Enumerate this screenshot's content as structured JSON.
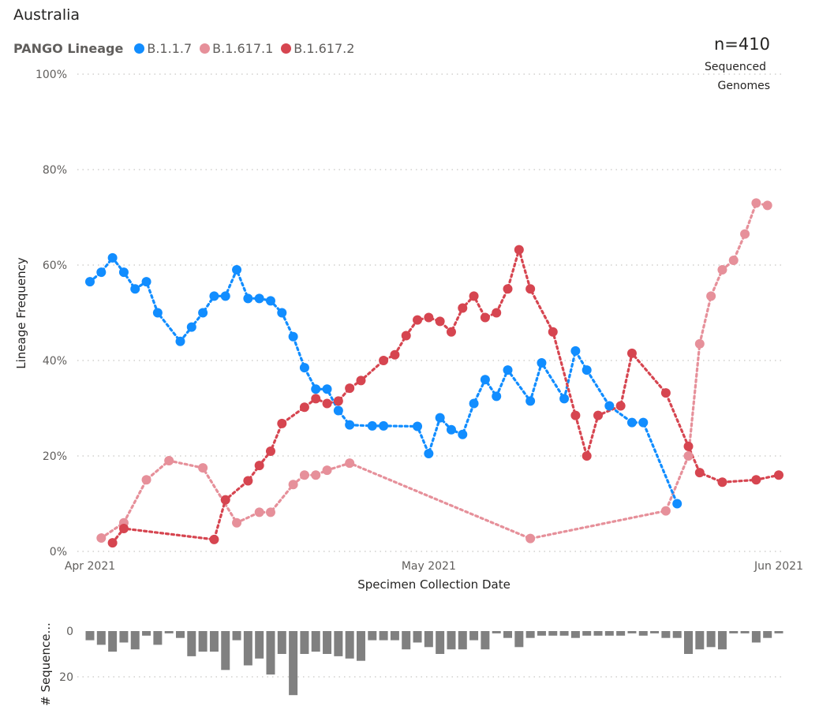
{
  "page": {
    "title": "Australia",
    "legend_title": "PANGO Lineage",
    "n_count": "n=410",
    "n_label_1": "Sequenced",
    "n_label_2": "Genomes"
  },
  "colors": {
    "B.1.1.7": "#118dff",
    "B.1.617.1": "#e6909a",
    "B.1.617.2": "#d64550",
    "bars": "#808080",
    "grid": "#c8c6c4"
  },
  "chart_data": [
    {
      "type": "line",
      "title": "",
      "xlabel": "Specimen Collection Date",
      "ylabel": "Lineage Frequency",
      "xlim": [
        "2021-04-01",
        "2021-06-01"
      ],
      "ylim": [
        0,
        100
      ],
      "yticks": [
        "0%",
        "20%",
        "40%",
        "60%",
        "80%",
        "100%"
      ],
      "ytick_values": [
        0,
        20,
        40,
        60,
        80,
        100
      ],
      "xticks": [
        "Apr 2021",
        "May 2021",
        "Jun 2021"
      ],
      "xtick_values": [
        "2021-04-01",
        "2021-05-01",
        "2021-06-01"
      ],
      "grid": true,
      "legend": "top-left",
      "series": [
        {
          "name": "B.1.1.7",
          "x": [
            "2021-04-01",
            "2021-04-02",
            "2021-04-03",
            "2021-04-04",
            "2021-04-05",
            "2021-04-06",
            "2021-04-07",
            "2021-04-09",
            "2021-04-10",
            "2021-04-11",
            "2021-04-12",
            "2021-04-13",
            "2021-04-14",
            "2021-04-15",
            "2021-04-16",
            "2021-04-17",
            "2021-04-18",
            "2021-04-19",
            "2021-04-20",
            "2021-04-21",
            "2021-04-22",
            "2021-04-23",
            "2021-04-24",
            "2021-04-26",
            "2021-04-27",
            "2021-04-30",
            "2021-05-01",
            "2021-05-02",
            "2021-05-03",
            "2021-05-04",
            "2021-05-05",
            "2021-05-06",
            "2021-05-07",
            "2021-05-08",
            "2021-05-10",
            "2021-05-11",
            "2021-05-13",
            "2021-05-14",
            "2021-05-15",
            "2021-05-17",
            "2021-05-19",
            "2021-05-20",
            "2021-05-23"
          ],
          "values": [
            56.5,
            58.5,
            61.5,
            58.5,
            55,
            56.5,
            50,
            44,
            47,
            50,
            53.5,
            53.5,
            59,
            53,
            53,
            52.5,
            50,
            45,
            38.5,
            34,
            34,
            29.5,
            26.5,
            26.3,
            26.3,
            26.2,
            20.5,
            28,
            25.5,
            24.5,
            31,
            36,
            32.5,
            38,
            31.5,
            39.5,
            32,
            42,
            38,
            30.5,
            27,
            27,
            10
          ]
        },
        {
          "name": "B.1.617.1",
          "x": [
            "2021-04-02",
            "2021-04-04",
            "2021-04-06",
            "2021-04-08",
            "2021-04-11",
            "2021-04-14",
            "2021-04-16",
            "2021-04-17",
            "2021-04-19",
            "2021-04-20",
            "2021-04-21",
            "2021-04-22",
            "2021-04-24",
            "2021-05-10",
            "2021-05-22",
            "2021-05-24",
            "2021-05-25",
            "2021-05-26",
            "2021-05-27",
            "2021-05-28",
            "2021-05-29",
            "2021-05-30",
            "2021-05-31"
          ],
          "values": [
            2.8,
            6,
            15,
            19,
            17.5,
            6,
            8.2,
            8.2,
            14,
            16,
            16,
            17,
            18.5,
            2.7,
            8.5,
            20,
            43.5,
            53.5,
            59,
            61,
            66.5,
            73,
            72.5
          ]
        },
        {
          "name": "B.1.617.2",
          "x": [
            "2021-04-03",
            "2021-04-04",
            "2021-04-12",
            "2021-04-13",
            "2021-04-15",
            "2021-04-16",
            "2021-04-17",
            "2021-04-18",
            "2021-04-20",
            "2021-04-21",
            "2021-04-22",
            "2021-04-23",
            "2021-04-24",
            "2021-04-25",
            "2021-04-27",
            "2021-04-28",
            "2021-04-29",
            "2021-04-30",
            "2021-05-01",
            "2021-05-02",
            "2021-05-03",
            "2021-05-04",
            "2021-05-05",
            "2021-05-06",
            "2021-05-07",
            "2021-05-08",
            "2021-05-09",
            "2021-05-10",
            "2021-05-12",
            "2021-05-14",
            "2021-05-15",
            "2021-05-16",
            "2021-05-18",
            "2021-05-19",
            "2021-05-22",
            "2021-05-24",
            "2021-05-25",
            "2021-05-27",
            "2021-05-30",
            "2021-06-01"
          ],
          "values": [
            1.8,
            4.8,
            2.5,
            10.8,
            14.8,
            18,
            21,
            26.8,
            30.2,
            32,
            31,
            31.5,
            34.2,
            35.8,
            40,
            41.2,
            45.2,
            48.5,
            49,
            48.2,
            46,
            51,
            53.5,
            49,
            50,
            55,
            63.2,
            55,
            46,
            28.5,
            20,
            28.5,
            30.5,
            41.5,
            33.2,
            22,
            16.5,
            14.5,
            15,
            16
          ]
        }
      ]
    },
    {
      "type": "bar",
      "title": "",
      "ylabel": "# Sequence...",
      "yticks": [
        "0",
        "20"
      ],
      "ytick_values": [
        0,
        20
      ],
      "grid": true,
      "categories": [
        "2021-04-01",
        "2021-04-02",
        "2021-04-03",
        "2021-04-04",
        "2021-04-05",
        "2021-04-06",
        "2021-04-07",
        "2021-04-08",
        "2021-04-09",
        "2021-04-10",
        "2021-04-11",
        "2021-04-12",
        "2021-04-13",
        "2021-04-14",
        "2021-04-15",
        "2021-04-16",
        "2021-04-17",
        "2021-04-18",
        "2021-04-19",
        "2021-04-20",
        "2021-04-21",
        "2021-04-22",
        "2021-04-23",
        "2021-04-24",
        "2021-04-25",
        "2021-04-26",
        "2021-04-27",
        "2021-04-28",
        "2021-04-29",
        "2021-04-30",
        "2021-05-01",
        "2021-05-02",
        "2021-05-03",
        "2021-05-04",
        "2021-05-05",
        "2021-05-06",
        "2021-05-07",
        "2021-05-08",
        "2021-05-09",
        "2021-05-10",
        "2021-05-11",
        "2021-05-12",
        "2021-05-13",
        "2021-05-14",
        "2021-05-15",
        "2021-05-16",
        "2021-05-17",
        "2021-05-18",
        "2021-05-19",
        "2021-05-20",
        "2021-05-21",
        "2021-05-22",
        "2021-05-23",
        "2021-05-24",
        "2021-05-25",
        "2021-05-26",
        "2021-05-27",
        "2021-05-28",
        "2021-05-29",
        "2021-05-30",
        "2021-05-31",
        "2021-06-01"
      ],
      "values": [
        4,
        6,
        9,
        5,
        8,
        2,
        6,
        1,
        3,
        11,
        9,
        9,
        17,
        4,
        15,
        12,
        19,
        10,
        28,
        10,
        9,
        10,
        11,
        12,
        13,
        4,
        4,
        4,
        8,
        5,
        7,
        10,
        8,
        8,
        4,
        8,
        1,
        3,
        7,
        3,
        2,
        2,
        2,
        3,
        2,
        2,
        2,
        2,
        1,
        2,
        1,
        3,
        3,
        10,
        8,
        7,
        8,
        1,
        1,
        5,
        3,
        1
      ]
    }
  ]
}
